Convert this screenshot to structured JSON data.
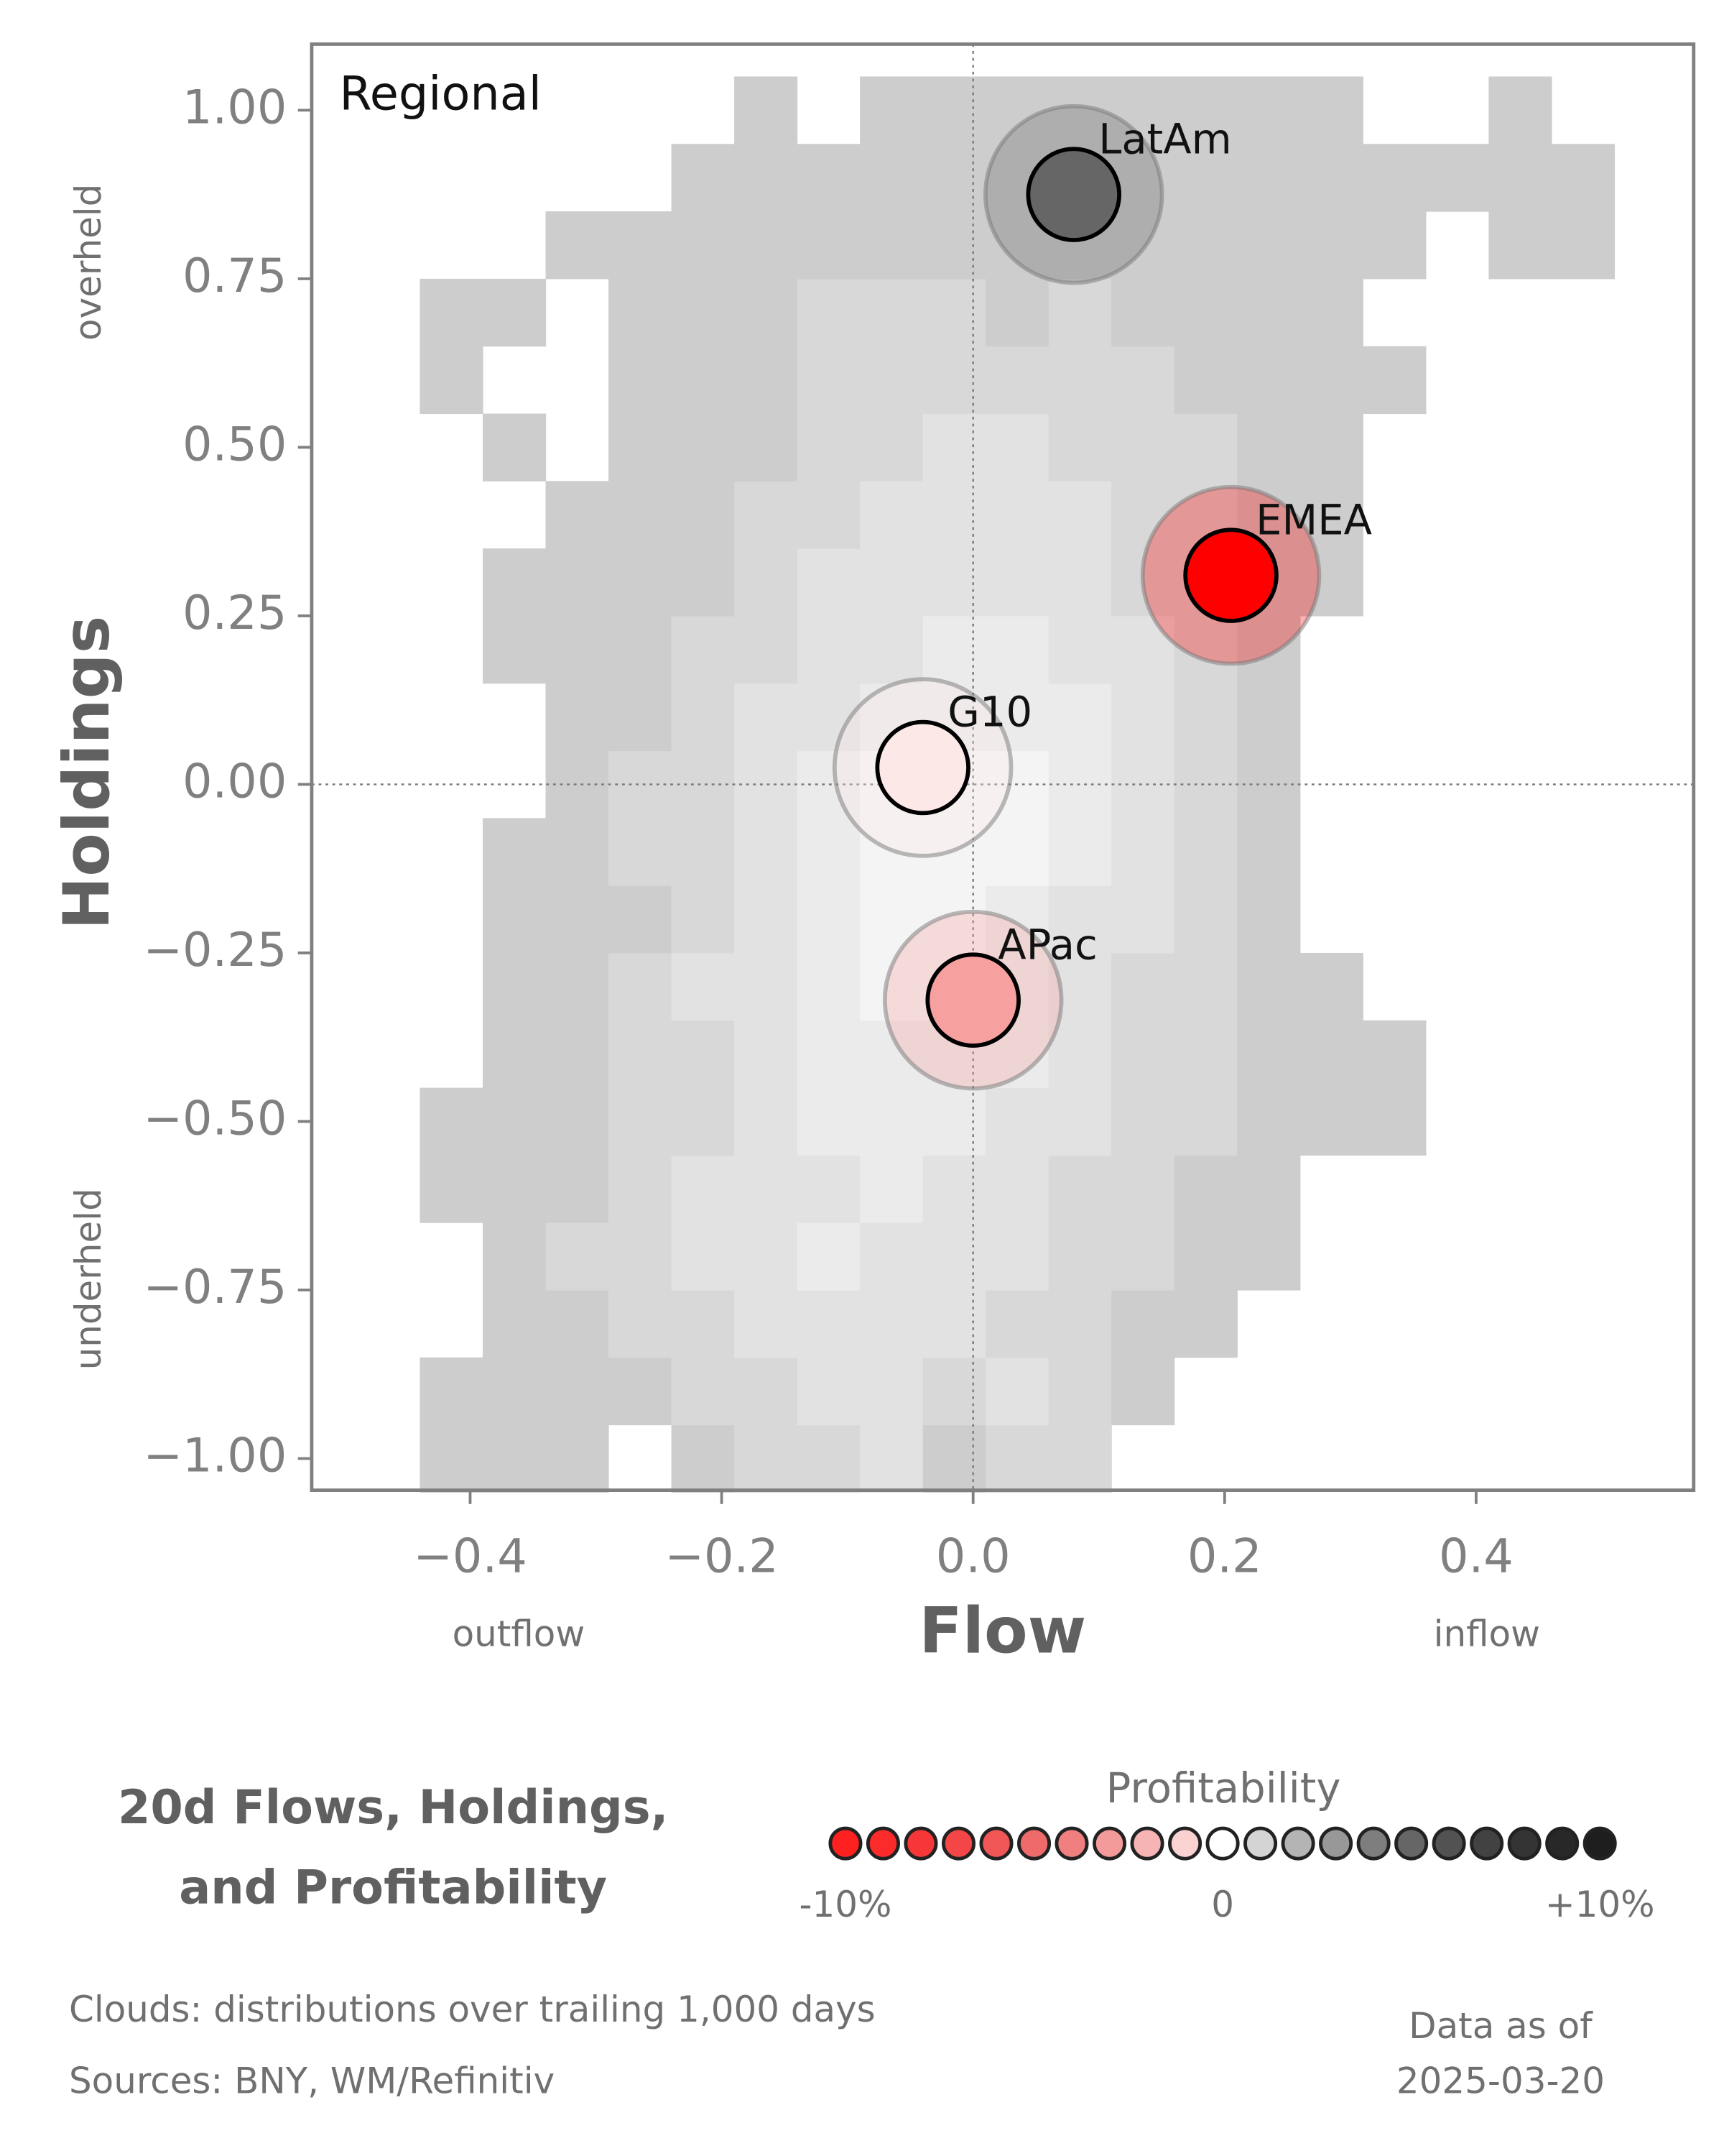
{
  "chart_data": {
    "type": "scatter",
    "title": "Regional",
    "xlabel": "Flow",
    "ylabel": "Holdings",
    "x_annotations": [
      "outflow",
      "inflow"
    ],
    "y_annotations": [
      "overheld",
      "underheld"
    ],
    "xlim": [
      -0.526,
      0.573
    ],
    "ylim": [
      -1.047,
      1.098
    ],
    "xticks": [
      {
        "value": -0.4,
        "label": "−0.4"
      },
      {
        "value": -0.2,
        "label": "−0.2"
      },
      {
        "value": 0,
        "label": "0.0"
      },
      {
        "value": 0.2,
        "label": "0.2"
      },
      {
        "value": 0.4,
        "label": "0.4"
      }
    ],
    "yticks": [
      {
        "value": 1,
        "label": "1.00"
      },
      {
        "value": 0.75,
        "label": "0.75"
      },
      {
        "value": 0.5,
        "label": "0.50"
      },
      {
        "value": 0.25,
        "label": "0.25"
      },
      {
        "value": 0,
        "label": "0.00"
      },
      {
        "value": -0.25,
        "label": "−0.25"
      },
      {
        "value": -0.5,
        "label": "−0.50"
      },
      {
        "value": -0.75,
        "label": "−0.75"
      },
      {
        "value": -1,
        "label": "−1.00"
      }
    ],
    "series": [
      {
        "name": "LatAm",
        "color": "#666666",
        "x": 0.08,
        "y": 0.875,
        "profitability": 5
      },
      {
        "name": "EMEA",
        "color": "#ff0000",
        "x": 0.205,
        "y": 0.31,
        "profitability": -10
      },
      {
        "name": "G10",
        "color": "#fde8e8",
        "x": -0.04,
        "y": 0.025,
        "profitability": -1
      },
      {
        "name": "APac",
        "color": "#f7a0a0",
        "x": 0.0,
        "y": -0.32,
        "profitability": -4
      }
    ],
    "cloud": {
      "xbins": [
        -0.44,
        -0.39,
        -0.34,
        -0.29,
        -0.24,
        -0.19,
        -0.14,
        -0.09,
        -0.04,
        0.01,
        0.06,
        0.11,
        0.16,
        0.21,
        0.26,
        0.31,
        0.36,
        0.41,
        0.46,
        0.51
      ],
      "ybins": [
        -1.05,
        -0.95,
        -0.85,
        -0.75,
        -0.65,
        -0.55,
        -0.45,
        -0.35,
        -0.25,
        -0.15,
        -0.05,
        0.05,
        0.15,
        0.25,
        0.35,
        0.45,
        0.55,
        0.65,
        0.75,
        0.85,
        0.95,
        1.05
      ],
      "counts": [
        [
          1,
          1,
          1,
          0,
          1,
          2,
          2,
          3,
          1,
          2,
          2,
          0,
          0,
          0,
          0,
          0,
          0,
          0,
          0
        ],
        [
          1,
          1,
          1,
          1,
          2,
          2,
          3,
          3,
          2,
          3,
          2,
          1,
          0,
          0,
          0,
          0,
          0,
          0,
          0
        ],
        [
          0,
          1,
          1,
          2,
          2,
          3,
          3,
          3,
          3,
          2,
          2,
          1,
          1,
          0,
          0,
          0,
          0,
          0,
          0
        ],
        [
          0,
          1,
          2,
          2,
          3,
          3,
          4,
          3,
          3,
          3,
          2,
          2,
          1,
          1,
          0,
          0,
          0,
          0,
          0
        ],
        [
          1,
          1,
          1,
          2,
          3,
          3,
          3,
          4,
          3,
          3,
          2,
          2,
          1,
          1,
          0,
          0,
          0,
          0,
          0
        ],
        [
          1,
          1,
          1,
          2,
          2,
          3,
          4,
          4,
          4,
          3,
          3,
          2,
          2,
          1,
          1,
          1,
          0,
          0,
          0
        ],
        [
          0,
          1,
          1,
          2,
          2,
          3,
          4,
          4,
          4,
          4,
          3,
          2,
          2,
          1,
          1,
          1,
          0,
          0,
          0
        ],
        [
          0,
          1,
          1,
          2,
          3,
          3,
          4,
          5,
          5,
          4,
          3,
          2,
          2,
          1,
          1,
          0,
          0,
          0,
          0
        ],
        [
          0,
          1,
          1,
          1,
          2,
          3,
          4,
          5,
          5,
          4,
          3,
          3,
          2,
          1,
          0,
          0,
          0,
          0,
          0
        ],
        [
          0,
          1,
          1,
          2,
          2,
          3,
          4,
          5,
          5,
          5,
          4,
          3,
          2,
          1,
          0,
          0,
          0,
          0,
          0
        ],
        [
          0,
          0,
          1,
          2,
          2,
          3,
          4,
          5,
          5,
          5,
          4,
          3,
          2,
          1,
          0,
          0,
          0,
          0,
          0
        ],
        [
          0,
          0,
          1,
          1,
          2,
          3,
          3,
          4,
          4,
          4,
          4,
          3,
          2,
          1,
          0,
          0,
          0,
          0,
          0
        ],
        [
          0,
          1,
          1,
          1,
          2,
          2,
          3,
          3,
          4,
          4,
          3,
          3,
          2,
          1,
          0,
          0,
          0,
          0,
          0
        ],
        [
          0,
          1,
          1,
          1,
          1,
          2,
          3,
          3,
          3,
          3,
          3,
          2,
          2,
          1,
          1,
          0,
          0,
          0,
          0
        ],
        [
          0,
          0,
          1,
          1,
          1,
          2,
          2,
          3,
          3,
          3,
          3,
          2,
          2,
          1,
          1,
          0,
          0,
          0,
          0
        ],
        [
          0,
          1,
          0,
          1,
          1,
          1,
          2,
          2,
          3,
          3,
          2,
          2,
          2,
          1,
          1,
          0,
          0,
          0,
          0
        ],
        [
          1,
          0,
          0,
          1,
          1,
          1,
          2,
          2,
          2,
          2,
          2,
          2,
          1,
          1,
          1,
          1,
          0,
          0,
          0
        ],
        [
          1,
          1,
          0,
          1,
          1,
          1,
          2,
          2,
          2,
          1,
          2,
          1,
          1,
          1,
          1,
          0,
          0,
          0,
          0
        ],
        [
          0,
          0,
          1,
          1,
          1,
          1,
          1,
          1,
          1,
          1,
          1,
          1,
          1,
          1,
          1,
          1,
          0,
          1,
          1
        ],
        [
          0,
          0,
          0,
          0,
          1,
          1,
          1,
          1,
          1,
          1,
          1,
          1,
          1,
          1,
          1,
          1,
          1,
          1,
          1
        ],
        [
          0,
          0,
          0,
          0,
          0,
          1,
          0,
          1,
          1,
          1,
          1,
          1,
          1,
          1,
          1,
          0,
          0,
          1,
          0
        ]
      ],
      "colors": [
        "#cdcdcd",
        "#d8d8d8",
        "#e2e2e2",
        "#ebebeb",
        "#f4f4f4"
      ]
    },
    "legend": {
      "title": "Profitability",
      "range": [
        -10,
        10
      ],
      "colors": [
        "#ff2020",
        "#fb2b2b",
        "#f73737",
        "#f44646",
        "#f05656",
        "#ef6a6a",
        "#f08080",
        "#f39a9a",
        "#f6b4b4",
        "#fad2d2",
        "#ffffff",
        "#d4d4d4",
        "#b4b4b4",
        "#989898",
        "#7e7e7e",
        "#666666",
        "#525252",
        "#424242",
        "#343434",
        "#282828",
        "#1e1e1e"
      ],
      "ticks": [
        {
          "value": -10,
          "label": "-10%"
        },
        {
          "value": 0,
          "label": "0"
        },
        {
          "value": 10,
          "label": "+10%"
        }
      ]
    },
    "heading": [
      "20d Flows, Holdings,",
      "and Profitability"
    ],
    "notes": [
      "Clouds:  distributions over trailing 1,000 days",
      "Sources:  BNY, WM/Refinitiv"
    ],
    "date_label": [
      "Data as of",
      "2025-03-20"
    ]
  }
}
